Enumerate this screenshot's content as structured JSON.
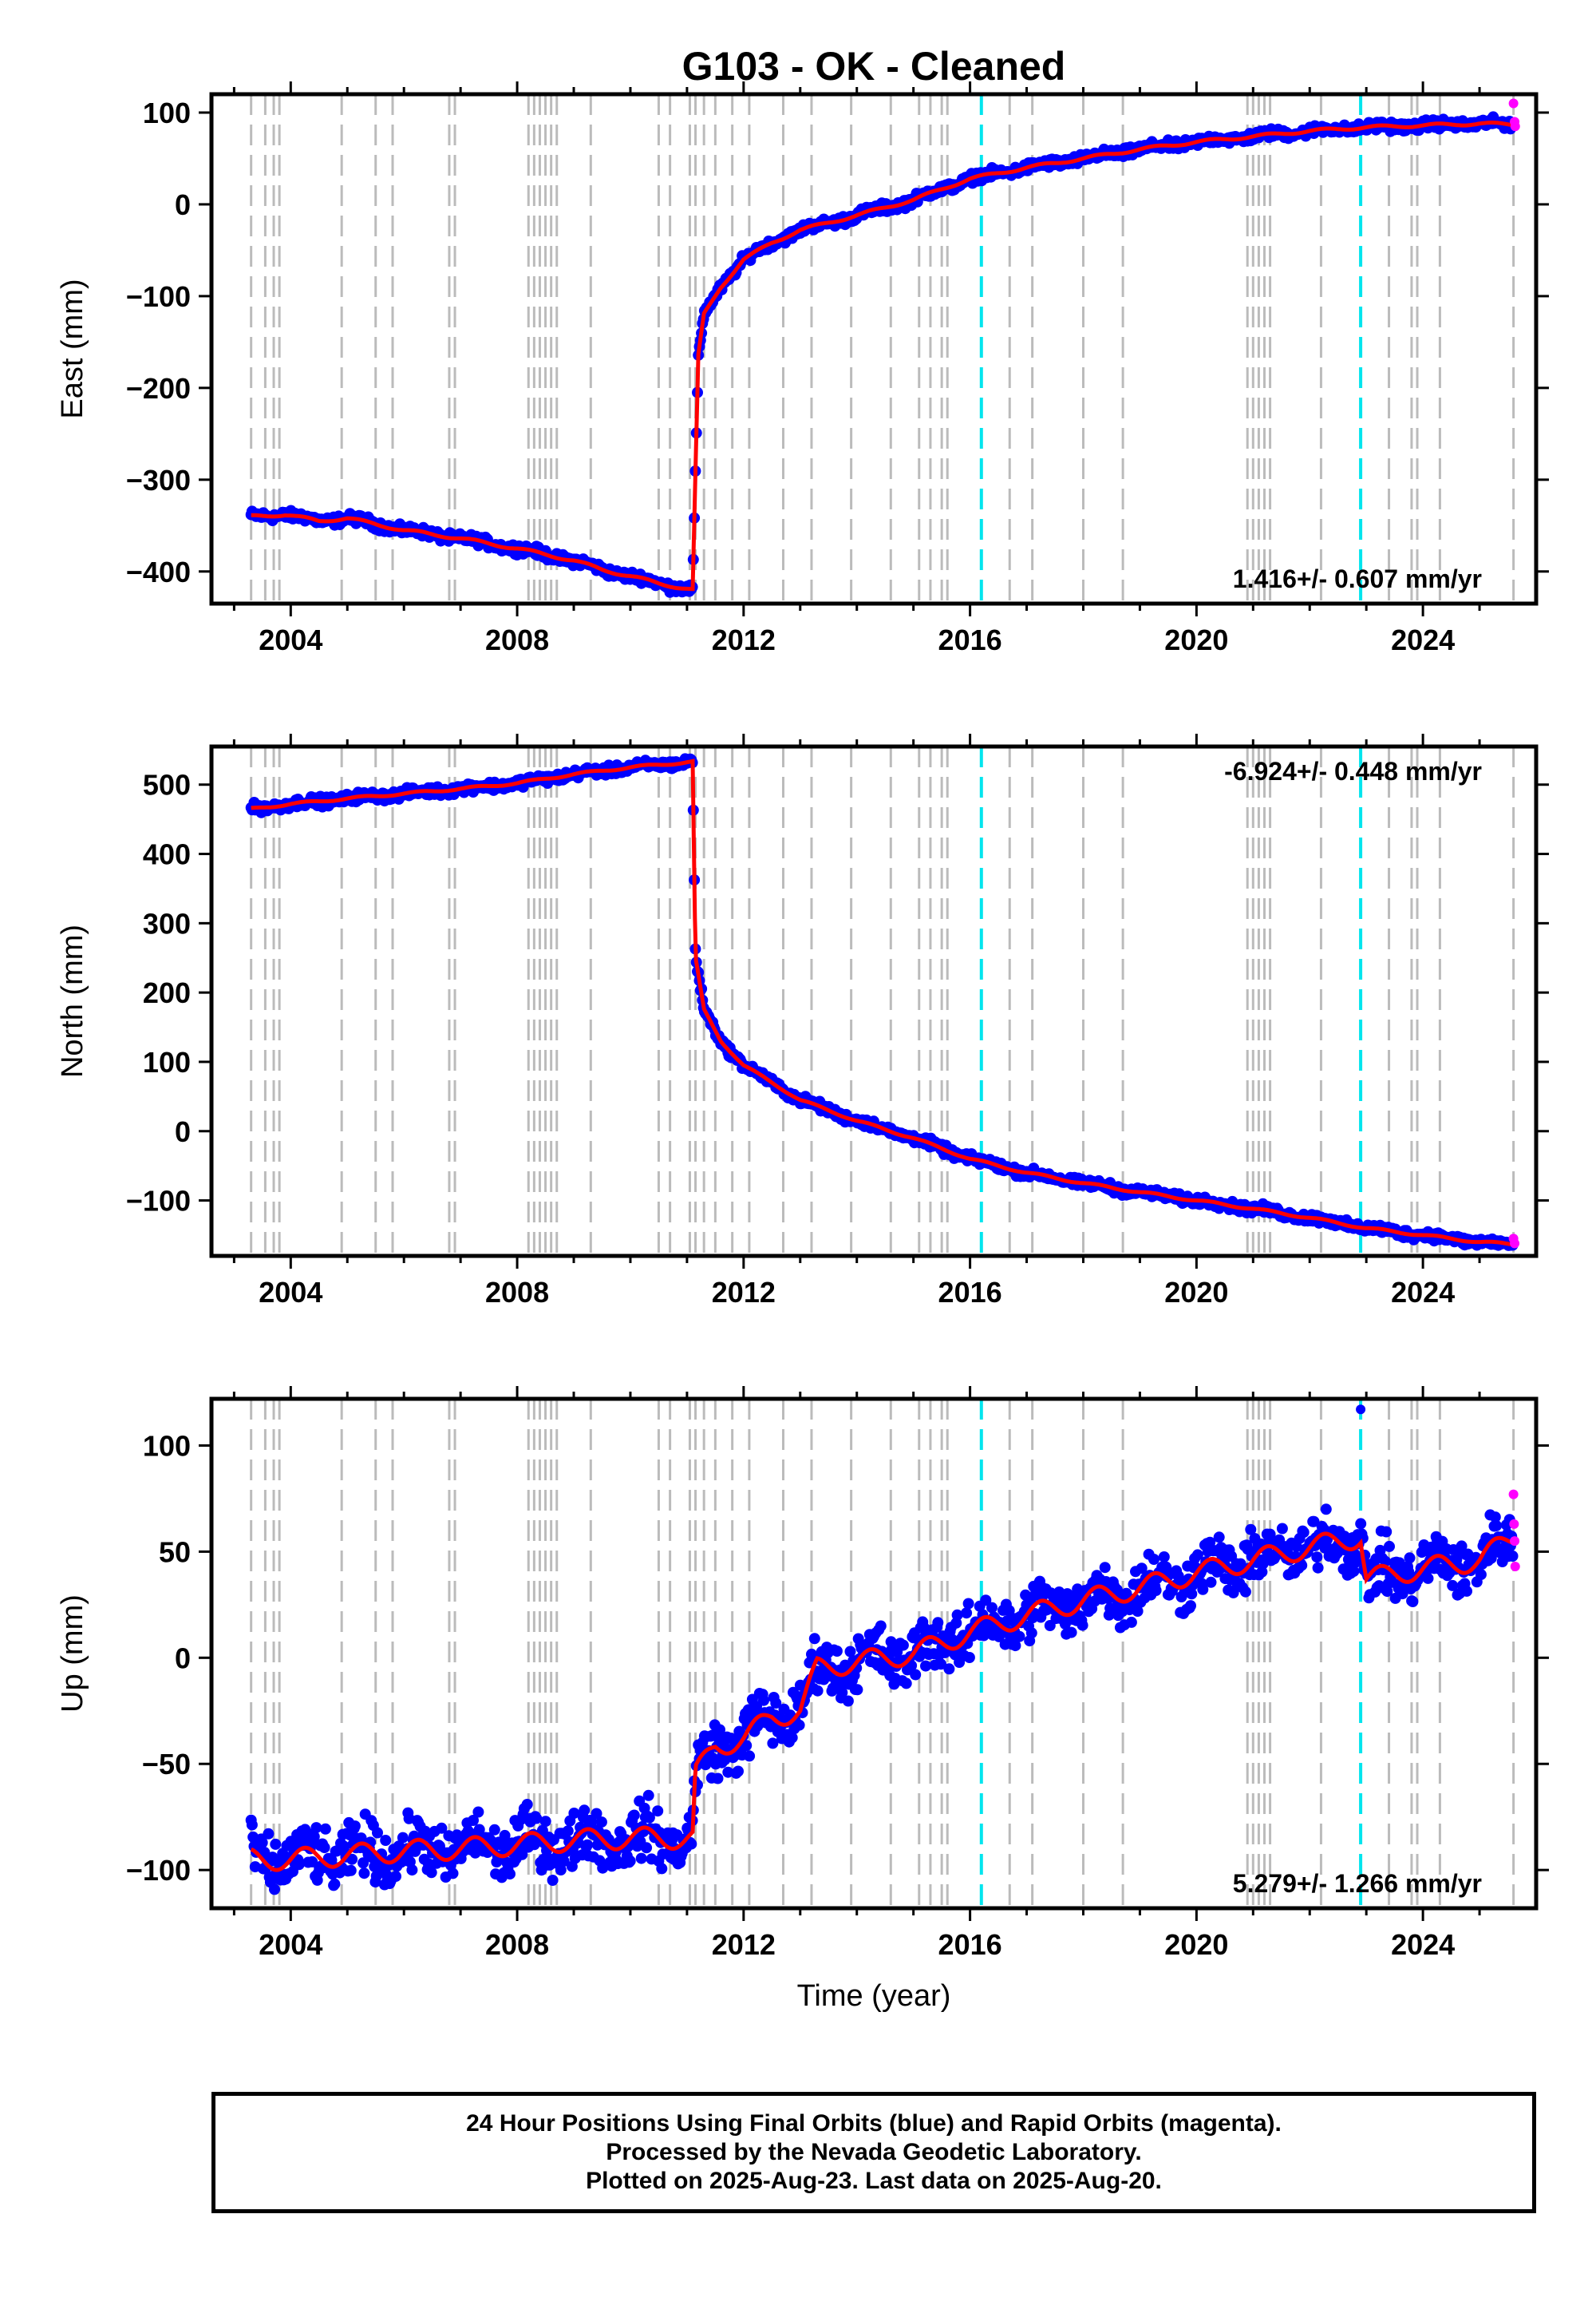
{
  "title": "G103  - OK - Cleaned",
  "colors": {
    "final_points": "#0000ff",
    "rapid_points": "#ff00ff",
    "model_line": "#ff0000",
    "equipment_lines": "#bbbbbb",
    "event_lines": "#00e5ee"
  },
  "footer": {
    "line1": "24 Hour Positions Using Final Orbits (blue) and Rapid Orbits (magenta).",
    "line2": "Processed by the Nevada Geodetic Laboratory.",
    "line3": "Plotted on 2025-Aug-23. Last data on 2025-Aug-20."
  },
  "chart_data": [
    {
      "type": "scatter",
      "panel": "east",
      "ylabel": "East (mm)",
      "xlabel": "",
      "xlim": [
        2002.6,
        2026.0
      ],
      "ylim": [
        -435,
        120
      ],
      "xticks": [
        "2004",
        "2008",
        "2012",
        "2016",
        "2020",
        "2024"
      ],
      "yticks": [
        "100",
        "0",
        "−100",
        "−200",
        "−300",
        "−400"
      ],
      "rate": "1.416+/- 0.607 mm/yr",
      "rate_position": "bottom-right",
      "series": [
        {
          "name": "Final orbits",
          "x": [
            2003.3,
            2003.9,
            2004.5,
            2005.0,
            2006.0,
            2007.0,
            2008.0,
            2009.0,
            2009.5,
            2010.0,
            2010.5,
            2011.1,
            2011.2,
            2011.3,
            2011.6,
            2012.0,
            2012.5,
            2013.0,
            2014.0,
            2015.0,
            2016.0,
            2017.0,
            2018.0,
            2019.0,
            2020.0,
            2021.0,
            2022.0,
            2023.0,
            2024.0,
            2025.0,
            2025.6
          ],
          "y": [
            -340,
            -338,
            -345,
            -342,
            -355,
            -364,
            -375,
            -388,
            -398,
            -405,
            -413,
            -420,
            -165,
            -120,
            -90,
            -60,
            -42,
            -28,
            -12,
            5,
            28,
            40,
            50,
            60,
            68,
            74,
            80,
            84,
            86,
            88,
            87
          ]
        },
        {
          "name": "Rapid orbits",
          "x": [
            2025.6,
            2025.62,
            2025.63
          ],
          "y": [
            110,
            90,
            85
          ]
        }
      ]
    },
    {
      "type": "scatter",
      "panel": "north",
      "ylabel": "North (mm)",
      "xlabel": "",
      "xlim": [
        2002.6,
        2026.0
      ],
      "ylim": [
        -180,
        555
      ],
      "xticks": [
        "2004",
        "2008",
        "2012",
        "2016",
        "2020",
        "2024"
      ],
      "yticks": [
        "500",
        "400",
        "300",
        "200",
        "100",
        "0",
        "−100"
      ],
      "rate": "-6.924+/- 0.448 mm/yr",
      "rate_position": "top-right",
      "series": [
        {
          "name": "Final orbits",
          "x": [
            2003.3,
            2004.0,
            2005.0,
            2006.0,
            2007.0,
            2008.0,
            2009.0,
            2010.0,
            2011.1,
            2011.15,
            2011.3,
            2011.6,
            2012.0,
            2012.5,
            2013.0,
            2014.0,
            2015.0,
            2016.0,
            2017.0,
            2018.0,
            2019.0,
            2020.0,
            2021.0,
            2022.0,
            2023.0,
            2024.0,
            2025.0,
            2025.6
          ],
          "y": [
            465,
            472,
            480,
            487,
            494,
            502,
            515,
            525,
            533,
            250,
            175,
            130,
            95,
            70,
            45,
            15,
            -10,
            -40,
            -60,
            -75,
            -88,
            -100,
            -112,
            -125,
            -140,
            -150,
            -160,
            -163
          ]
        },
        {
          "name": "Rapid orbits",
          "x": [
            2025.6,
            2025.62
          ],
          "y": [
            -155,
            -162
          ]
        }
      ]
    },
    {
      "type": "scatter",
      "panel": "up",
      "ylabel": "Up (mm)",
      "xlabel": "Time (year)",
      "xlim": [
        2002.6,
        2026.0
      ],
      "ylim": [
        -118,
        122
      ],
      "xticks": [
        "2004",
        "2008",
        "2012",
        "2016",
        "2020",
        "2024"
      ],
      "yticks": [
        "100",
        "50",
        "0",
        "−50",
        "−100"
      ],
      "rate": "5.279+/- 1.266 mm/yr",
      "rate_position": "bottom-right",
      "series": [
        {
          "name": "Final orbits",
          "x": [
            2003.3,
            2004.0,
            2005.0,
            2006.0,
            2007.0,
            2008.0,
            2009.0,
            2010.0,
            2011.1,
            2011.15,
            2011.5,
            2012.0,
            2012.5,
            2013.0,
            2013.3,
            2014.0,
            2015.0,
            2016.0,
            2017.0,
            2018.0,
            2019.0,
            2020.0,
            2021.0,
            2022.0,
            2022.9,
            2023.0,
            2024.0,
            2025.0,
            2025.6
          ],
          "y": [
            -95,
            -95,
            -93,
            -91,
            -90,
            -88,
            -86,
            -85,
            -85,
            -55,
            -42,
            -38,
            -28,
            -25,
            -5,
            -2,
            2,
            12,
            20,
            27,
            33,
            40,
            46,
            52,
            57,
            37,
            42,
            46,
            57
          ]
        },
        {
          "name": "Rapid orbits",
          "x": [
            2025.6,
            2025.61,
            2025.62,
            2025.63
          ],
          "y": [
            77,
            63,
            55,
            43
          ]
        },
        {
          "name": "Outlier",
          "x": [
            2022.9
          ],
          "y": [
            117
          ]
        }
      ]
    }
  ],
  "equipment_changes": [
    2003.3,
    2003.55,
    2003.7,
    2003.8,
    2004.9,
    2005.5,
    2005.8,
    2006.8,
    2006.9,
    2008.2,
    2008.3,
    2008.4,
    2008.5,
    2008.6,
    2008.7,
    2009.3,
    2010.5,
    2010.7,
    2011.05,
    2011.15,
    2011.3,
    2011.5,
    2011.8,
    2012.1,
    2012.7,
    2013.2,
    2013.9,
    2014.6,
    2015.1,
    2015.3,
    2015.5,
    2015.6,
    2016.7,
    2017.1,
    2018.0,
    2018.7,
    2020.9,
    2021.0,
    2021.1,
    2021.2,
    2021.3,
    2022.2,
    2023.4,
    2023.8,
    2023.9,
    2024.3,
    2025.6
  ],
  "events": [
    2016.2,
    2022.9
  ]
}
